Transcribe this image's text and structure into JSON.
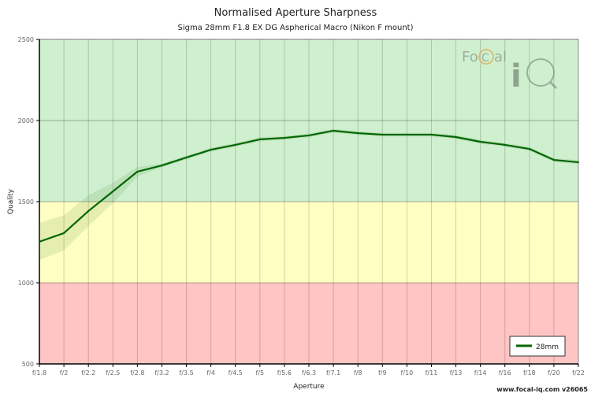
{
  "chart_data": {
    "type": "line",
    "title": "Normalised Aperture Sharpness",
    "subtitle": "Sigma 28mm F1.8 EX DG Aspherical Macro (Nikon F mount)",
    "xlabel": "Aperture",
    "ylabel": "Quality",
    "categories": [
      "f/1.8",
      "f/2",
      "f/2.2",
      "f/2.5",
      "f/2.8",
      "f/3.2",
      "f/3.5",
      "f/4",
      "f/4.5",
      "f/5",
      "f/5.6",
      "f/6.3",
      "f/7.1",
      "f/8",
      "f/9",
      "f/10",
      "f/11",
      "f/13",
      "f/14",
      "f/16",
      "f/18",
      "f/20",
      "f/22"
    ],
    "ylim": [
      500,
      2500
    ],
    "yticks": [
      500,
      1000,
      1500,
      2000,
      2500
    ],
    "grid": true,
    "bands": [
      {
        "from": 500,
        "to": 1000,
        "color": "#ffc4c4"
      },
      {
        "from": 1000,
        "to": 1500,
        "color": "#ffffc4"
      },
      {
        "from": 1500,
        "to": 2500,
        "color": "#cff0cf"
      }
    ],
    "series": [
      {
        "name": "28mm",
        "color": "#006600",
        "values": [
          1253,
          1306,
          1442,
          1563,
          1685,
          1723,
          1772,
          1820,
          1850,
          1884,
          1893,
          1908,
          1937,
          1922,
          1913,
          1913,
          1913,
          1898,
          1869,
          1850,
          1825,
          1757,
          1743
        ],
        "upper": [
          1369,
          1417,
          1539,
          1617,
          1714,
          1735,
          1784,
          1832,
          1862,
          1896,
          1905,
          1920,
          1949,
          1934,
          1925,
          1925,
          1925,
          1910,
          1881,
          1862,
          1837,
          1769,
          1755
        ],
        "lower": [
          1141,
          1199,
          1350,
          1490,
          1655,
          1711,
          1760,
          1808,
          1838,
          1872,
          1881,
          1896,
          1925,
          1910,
          1901,
          1901,
          1901,
          1886,
          1857,
          1838,
          1813,
          1745,
          1731
        ]
      }
    ],
    "legend": "bottom-right",
    "watermark": "FoCal iQ",
    "footer": "www.focal-iq.com  v26065"
  }
}
